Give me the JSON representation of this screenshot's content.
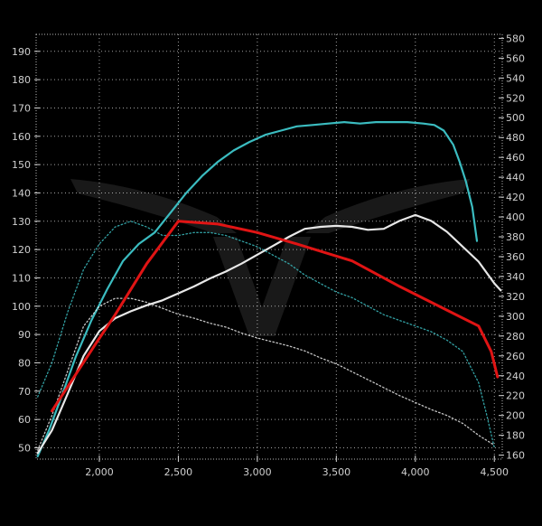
{
  "chart_data": {
    "type": "line",
    "title": "",
    "xlabel": "",
    "ylabel": "",
    "y2label": "",
    "xlim": [
      1600,
      4550
    ],
    "ylim": [
      46,
      196
    ],
    "y2lim": [
      156,
      584
    ],
    "xticks": [
      2000,
      2500,
      3000,
      3500,
      4000,
      4500
    ],
    "xtick_labels": [
      "2,000",
      "2,500",
      "3,000",
      "3,500",
      "4,000",
      "4,500"
    ],
    "yticks": [
      50,
      60,
      70,
      80,
      90,
      100,
      110,
      120,
      130,
      140,
      150,
      160,
      170,
      180,
      190
    ],
    "y2ticks": [
      160,
      180,
      200,
      220,
      240,
      260,
      280,
      300,
      320,
      340,
      360,
      380,
      400,
      420,
      440,
      460,
      480,
      500,
      520,
      540,
      560,
      580
    ],
    "grid": true,
    "legend": "none",
    "colors": {
      "background": "#000000",
      "grid": "#d8d8d8",
      "cyan": "#3bbcc0",
      "white": "#e8e8e8",
      "red": "#e01414"
    },
    "series": [
      {
        "style": "solid",
        "color": "cyan",
        "axis": "left",
        "x": [
          1610,
          1680,
          1760,
          1850,
          1950,
          2050,
          2150,
          2250,
          2350,
          2450,
          2550,
          2650,
          2750,
          2850,
          2950,
          3050,
          3150,
          3250,
          3350,
          3450,
          3550,
          3650,
          3750,
          3850,
          3950,
          4050,
          4120,
          4180,
          4240,
          4280,
          4320,
          4360,
          4390
        ],
        "y": [
          47,
          56,
          68,
          82,
          95,
          106,
          116,
          122,
          126,
          133,
          140,
          146,
          151,
          155,
          158,
          160.5,
          162,
          163.5,
          164,
          164.5,
          165,
          164.5,
          165,
          165,
          165,
          164.5,
          164,
          162,
          157,
          151,
          144,
          135,
          123
        ]
      },
      {
        "style": "solid",
        "color": "white",
        "axis": "right",
        "x": [
          1610,
          1700,
          1800,
          1900,
          2000,
          2100,
          2200,
          2300,
          2400,
          2500,
          2600,
          2700,
          2800,
          2900,
          3000,
          3100,
          3200,
          3300,
          3400,
          3500,
          3600,
          3700,
          3800,
          3900,
          4000,
          4100,
          4200,
          4300,
          4400,
          4500,
          4540
        ],
        "y": [
          162,
          185,
          222,
          260,
          285,
          298,
          305,
          311,
          316,
          323,
          330,
          338,
          345,
          353,
          362,
          371,
          380,
          388,
          390,
          391,
          390,
          387,
          388,
          396,
          402,
          396,
          385,
          370,
          355,
          333,
          326
        ]
      },
      {
        "style": "dotted",
        "color": "cyan",
        "axis": "left",
        "x": [
          1610,
          1700,
          1800,
          1900,
          2000,
          2100,
          2200,
          2300,
          2400,
          2500,
          2600,
          2700,
          2800,
          2900,
          3000,
          3100,
          3200,
          3300,
          3400,
          3500,
          3600,
          3700,
          3800,
          3900,
          4000,
          4100,
          4200,
          4300,
          4400,
          4450,
          4500
        ],
        "y": [
          68,
          80,
          98,
          113,
          122,
          128,
          130,
          128,
          125,
          125,
          126,
          126,
          125,
          123,
          121,
          118,
          115,
          111,
          108,
          105,
          103,
          100,
          97,
          95,
          93,
          91,
          88,
          84,
          73,
          62,
          50
        ]
      },
      {
        "style": "dotted",
        "color": "white",
        "axis": "right",
        "x": [
          1610,
          1700,
          1800,
          1900,
          2000,
          2100,
          2200,
          2300,
          2400,
          2500,
          2600,
          2700,
          2800,
          2900,
          3000,
          3100,
          3200,
          3300,
          3400,
          3500,
          3600,
          3700,
          3800,
          3900,
          4000,
          4100,
          4200,
          4300,
          4400,
          4500
        ],
        "y": [
          165,
          200,
          245,
          290,
          310,
          318,
          318,
          314,
          308,
          302,
          298,
          293,
          289,
          283,
          278,
          274,
          270,
          265,
          258,
          252,
          244,
          236,
          228,
          220,
          213,
          206,
          200,
          192,
          180,
          170
        ]
      },
      {
        "style": "solid-thick",
        "color": "red",
        "axis": "left",
        "x": [
          1700,
          1980,
          2100,
          2300,
          2500,
          2750,
          3000,
          3250,
          3600,
          3900,
          4400,
          4480,
          4520
        ],
        "y": [
          63,
          87,
          97,
          115,
          130,
          129,
          126,
          122,
          116,
          107,
          93,
          84,
          75
        ]
      }
    ]
  }
}
